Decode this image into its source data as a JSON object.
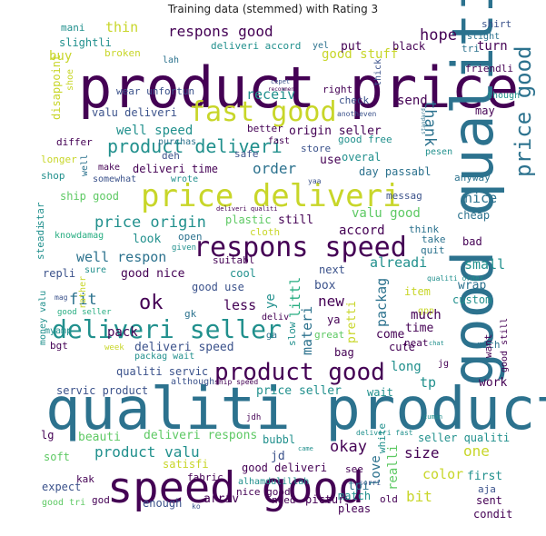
{
  "chart_data": {
    "type": "wordcloud",
    "title": "Training data (stemmed) with Rating 3",
    "palette": {
      "deep_purple": "#440154",
      "purple": "#472c7a",
      "blue": "#3b528b",
      "steel": "#2c728e",
      "teal": "#21908d",
      "green": "#27ad81",
      "lime": "#5dc963",
      "yellow": "#bddf26",
      "gold": "#c8d629"
    },
    "words": [
      {
        "text": "product price"
      },
      {
        "text": "qualiti product"
      },
      {
        "text": "good qualiti"
      },
      {
        "text": "speed good"
      },
      {
        "text": "price deliveri"
      },
      {
        "text": "respons speed"
      },
      {
        "text": "fast good"
      },
      {
        "text": "deliveri seller"
      },
      {
        "text": "product good"
      },
      {
        "text": "price good"
      },
      {
        "text": "product deliveri"
      },
      {
        "text": "respons good"
      },
      {
        "text": "product valu"
      },
      {
        "text": "price origin"
      },
      {
        "text": "well speed"
      },
      {
        "text": "good stuff"
      },
      {
        "text": "well respon"
      },
      {
        "text": "ok"
      },
      {
        "text": "order"
      },
      {
        "text": "hope"
      },
      {
        "text": "thank"
      },
      {
        "text": "receiv"
      },
      {
        "text": "valu deliveri"
      },
      {
        "text": "origin seller"
      },
      {
        "text": "deliveri time"
      },
      {
        "text": "wear unfortun"
      },
      {
        "text": "thin"
      },
      {
        "text": "mani"
      },
      {
        "text": "lah"
      },
      {
        "text": "slightli"
      },
      {
        "text": "buy"
      },
      {
        "text": "broken"
      },
      {
        "text": "deliveri accord"
      },
      {
        "text": "yel"
      },
      {
        "text": "put"
      },
      {
        "text": "black"
      },
      {
        "text": "turn"
      },
      {
        "text": "shirt"
      },
      {
        "text": "slight"
      },
      {
        "text": "tri"
      },
      {
        "text": "friendli"
      },
      {
        "text": "though"
      },
      {
        "text": "may"
      },
      {
        "text": "thick"
      },
      {
        "text": "right"
      },
      {
        "text": "cepet"
      },
      {
        "text": "recommend"
      },
      {
        "text": "check"
      },
      {
        "text": "send"
      },
      {
        "text": "anotheven"
      },
      {
        "text": "disappoint"
      },
      {
        "text": "shoe"
      },
      {
        "text": "better"
      },
      {
        "text": "fast"
      },
      {
        "text": "good free"
      },
      {
        "text": "standard"
      },
      {
        "text": "overal"
      },
      {
        "text": "differ"
      },
      {
        "text": "longer"
      },
      {
        "text": "shop"
      },
      {
        "text": "well"
      },
      {
        "text": "make"
      },
      {
        "text": "somewhat"
      },
      {
        "text": "deh"
      },
      {
        "text": "wrote"
      },
      {
        "text": "safe"
      },
      {
        "text": "store"
      },
      {
        "text": "use"
      },
      {
        "text": "yaa"
      },
      {
        "text": "pesen"
      },
      {
        "text": "day passabl"
      },
      {
        "text": "anyway"
      },
      {
        "text": "messag"
      },
      {
        "text": "star"
      },
      {
        "text": "ship good"
      },
      {
        "text": "plastic"
      },
      {
        "text": "deliveri qualiti"
      },
      {
        "text": "valu good"
      },
      {
        "text": "nice"
      },
      {
        "text": "cheap"
      },
      {
        "text": "steadi"
      },
      {
        "text": "knowdamag"
      },
      {
        "text": "still"
      },
      {
        "text": "cloth"
      },
      {
        "text": "accord"
      },
      {
        "text": "think"
      },
      {
        "text": "take"
      },
      {
        "text": "quit"
      },
      {
        "text": "bad"
      },
      {
        "text": "look"
      },
      {
        "text": "open"
      },
      {
        "text": "given"
      },
      {
        "text": "suitabl"
      },
      {
        "text": "small"
      },
      {
        "text": "repli"
      },
      {
        "text": "sure"
      },
      {
        "text": "good nice"
      },
      {
        "text": "cool"
      },
      {
        "text": "alreadi"
      },
      {
        "text": "qualiti order"
      },
      {
        "text": "wrap"
      },
      {
        "text": "next"
      },
      {
        "text": "fit"
      },
      {
        "text": "good use"
      },
      {
        "text": "box"
      },
      {
        "text": "item"
      },
      {
        "text": "custom"
      },
      {
        "text": "rather"
      },
      {
        "text": "mag"
      },
      {
        "text": "money valu"
      },
      {
        "text": "good seller"
      },
      {
        "text": "less"
      },
      {
        "text": "ye"
      },
      {
        "text": "littl"
      },
      {
        "text": "new"
      },
      {
        "text": "packag"
      },
      {
        "text": "gpp"
      },
      {
        "text": "much"
      },
      {
        "text": "gk"
      },
      {
        "text": "deliv"
      },
      {
        "text": "ga"
      },
      {
        "text": "pretti"
      },
      {
        "text": "ya"
      },
      {
        "text": "time"
      },
      {
        "text": "myamp"
      },
      {
        "text": "pack"
      },
      {
        "text": "materi"
      },
      {
        "text": "slow"
      },
      {
        "text": "great"
      },
      {
        "text": "come"
      },
      {
        "text": "week"
      },
      {
        "text": "neat"
      },
      {
        "text": "cute"
      },
      {
        "text": "chat"
      },
      {
        "text": "rich"
      },
      {
        "text": "want"
      },
      {
        "text": "good still"
      },
      {
        "text": "deliveri speed"
      },
      {
        "text": "packag wait"
      },
      {
        "text": "bag"
      },
      {
        "text": "bgt"
      },
      {
        "text": "qualiti servic"
      },
      {
        "text": "although"
      },
      {
        "text": "ship speed"
      },
      {
        "text": "long"
      },
      {
        "text": "jg"
      },
      {
        "text": "tp"
      },
      {
        "text": "work"
      },
      {
        "text": "servic product"
      },
      {
        "text": "price seller"
      },
      {
        "text": "wait"
      },
      {
        "text": "jdh"
      },
      {
        "text": "cuman"
      },
      {
        "text": "bubbl"
      },
      {
        "text": "jd"
      },
      {
        "text": "deliveri fast"
      },
      {
        "text": "lg"
      },
      {
        "text": "beauti"
      },
      {
        "text": "deliveri respons"
      },
      {
        "text": "okay"
      },
      {
        "text": "seller qualiti"
      },
      {
        "text": "one"
      },
      {
        "text": "size"
      },
      {
        "text": "came"
      },
      {
        "text": "soft"
      },
      {
        "text": "satisfi"
      },
      {
        "text": "good deliveri"
      },
      {
        "text": "love"
      },
      {
        "text": "white"
      },
      {
        "text": "fabric"
      },
      {
        "text": "alhamdulillah"
      },
      {
        "text": "realli"
      },
      {
        "text": "color"
      },
      {
        "text": "see"
      },
      {
        "text": "first"
      },
      {
        "text": "kak"
      },
      {
        "text": "sorri"
      },
      {
        "text": "tpi"
      },
      {
        "text": "bit"
      },
      {
        "text": "aja"
      },
      {
        "text": "expect"
      },
      {
        "text": "sent"
      },
      {
        "text": "nice good"
      },
      {
        "text": "match"
      },
      {
        "text": "condit"
      },
      {
        "text": "good tri"
      },
      {
        "text": "god"
      },
      {
        "text": "enough"
      },
      {
        "text": "ko"
      },
      {
        "text": "arriv"
      },
      {
        "text": "need"
      },
      {
        "text": "pictur"
      },
      {
        "text": "pleas"
      },
      {
        "text": "old"
      },
      {
        "text": "purchas"
      }
    ]
  }
}
